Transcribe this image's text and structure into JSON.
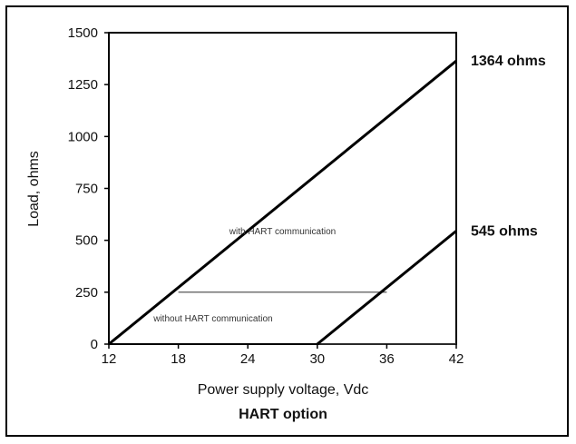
{
  "chart_data": {
    "type": "line",
    "title": "",
    "caption": "HART option",
    "xlabel": "Power supply voltage, Vdc",
    "ylabel": "Load, ohms",
    "xlim": [
      12,
      42
    ],
    "ylim": [
      0,
      1500
    ],
    "x_ticks": [
      "12",
      "18",
      "24",
      "30",
      "36",
      "42"
    ],
    "y_ticks": [
      "1500",
      "1250",
      "1000",
      "750",
      "500",
      "250",
      "0"
    ],
    "grid": false,
    "series": [
      {
        "name": "with HART communication",
        "x": [
          12,
          42
        ],
        "y": [
          0,
          1364
        ]
      },
      {
        "name": "",
        "x": [
          30,
          42
        ],
        "y": [
          0,
          545
        ]
      }
    ],
    "reference_lines": [
      {
        "x": [
          18,
          36
        ],
        "y": [
          250,
          250
        ]
      },
      {
        "x": [
          30,
          42
        ],
        "y": [
          0,
          0
        ]
      }
    ],
    "annotations": [
      {
        "text": "1364 ohms",
        "x": 42,
        "y": 1364
      },
      {
        "text": "545 ohms",
        "x": 42,
        "y": 545
      },
      {
        "text": "with HART communication",
        "x": 27,
        "y": 530
      },
      {
        "text": "without HART communication",
        "x": 21,
        "y": 110
      }
    ]
  }
}
